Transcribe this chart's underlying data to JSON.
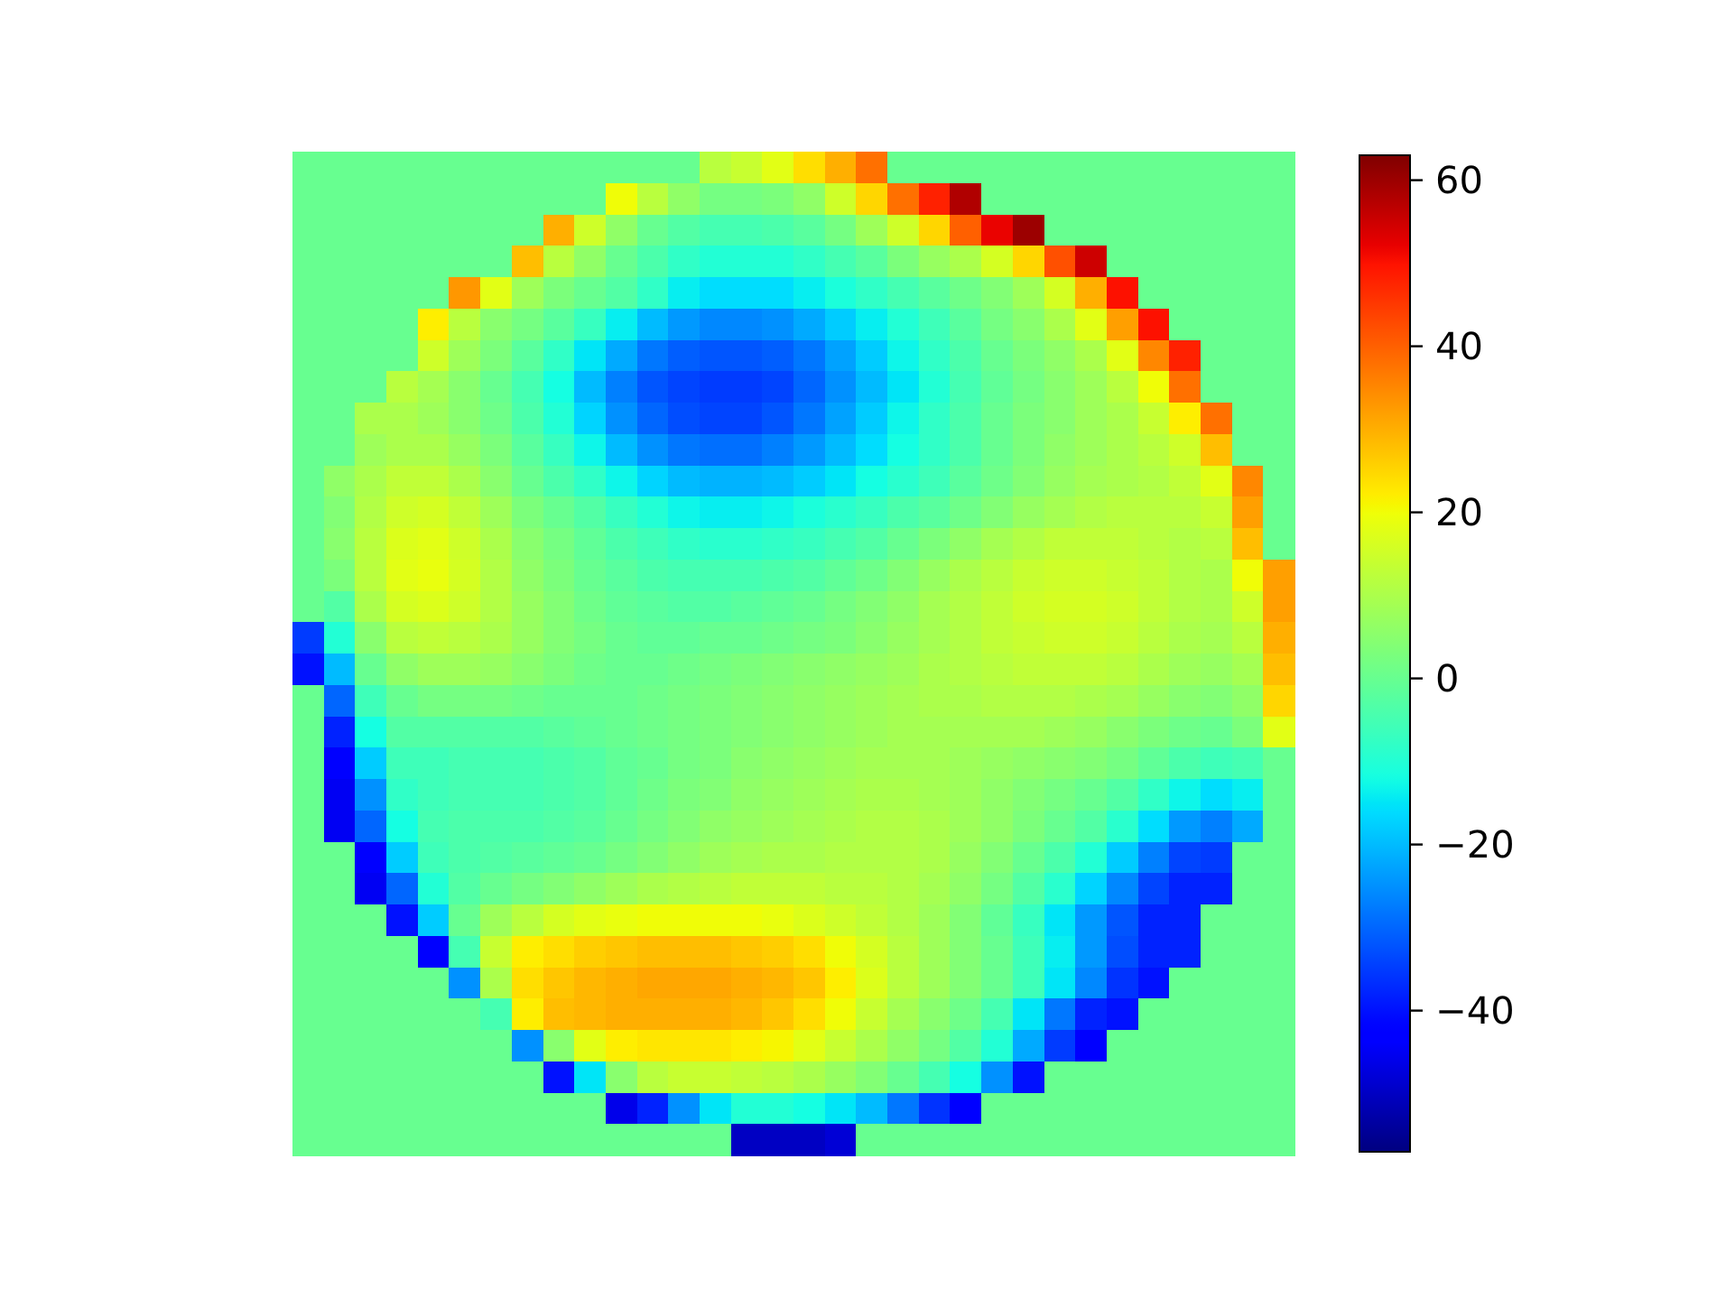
{
  "chart_data": {
    "type": "heatmap",
    "categories": [
      null,
      null,
      null,
      null,
      null,
      null,
      null,
      null,
      null,
      null,
      null,
      null,
      null,
      null,
      null,
      null,
      null,
      null,
      null,
      null,
      null,
      null,
      null,
      null,
      null,
      null,
      null,
      null,
      null,
      null,
      null,
      null
    ],
    "y_categories": [
      null,
      null,
      null,
      null,
      null,
      null,
      null,
      null,
      null,
      null,
      null,
      null,
      null,
      null,
      null,
      null,
      null,
      null,
      null,
      null,
      null,
      null,
      null,
      null,
      null,
      null,
      null,
      null,
      null,
      null,
      null,
      null
    ],
    "cells": [
      [
        0,
        0,
        0,
        0,
        0,
        0,
        0,
        0,
        0,
        0,
        0,
        0,
        0,
        12,
        14,
        18,
        24,
        30,
        38,
        0,
        0,
        0,
        0,
        0,
        0,
        0,
        0,
        0,
        0,
        0,
        0,
        0
      ],
      [
        0,
        0,
        0,
        0,
        0,
        0,
        0,
        0,
        0,
        0,
        20,
        12,
        6,
        2,
        2,
        3,
        6,
        15,
        25,
        38,
        48,
        58,
        0,
        0,
        0,
        0,
        0,
        0,
        0,
        0,
        0,
        0
      ],
      [
        0,
        0,
        0,
        0,
        0,
        0,
        0,
        0,
        30,
        15,
        6,
        0,
        -3,
        -5,
        -5,
        -4,
        -2,
        2,
        8,
        15,
        25,
        40,
        52,
        60,
        0,
        0,
        0,
        0,
        0,
        0,
        0,
        0
      ],
      [
        0,
        0,
        0,
        0,
        0,
        0,
        0,
        28,
        12,
        6,
        0,
        -4,
        -8,
        -10,
        -10,
        -10,
        -8,
        -5,
        -2,
        3,
        7,
        10,
        16,
        25,
        42,
        55,
        0,
        0,
        0,
        0,
        0,
        0
      ],
      [
        0,
        0,
        0,
        0,
        0,
        33,
        18,
        8,
        3,
        0,
        -3,
        -8,
        -14,
        -16,
        -16,
        -16,
        -14,
        -11,
        -8,
        -5,
        -2,
        1,
        4,
        8,
        16,
        30,
        50,
        0,
        0,
        0,
        0,
        0
      ],
      [
        0,
        0,
        0,
        0,
        22,
        12,
        5,
        2,
        -2,
        -7,
        -14,
        -20,
        -24,
        -26,
        -26,
        -25,
        -22,
        -18,
        -14,
        -10,
        -6,
        -2,
        2,
        5,
        10,
        18,
        32,
        50,
        0,
        0,
        0,
        0
      ],
      [
        0,
        0,
        0,
        0,
        15,
        8,
        3,
        -2,
        -8,
        -15,
        -22,
        -28,
        -31,
        -32,
        -32,
        -31,
        -28,
        -23,
        -18,
        -13,
        -8,
        -4,
        0,
        3,
        6,
        10,
        18,
        35,
        48,
        0,
        0,
        0
      ],
      [
        0,
        0,
        0,
        12,
        9,
        5,
        0,
        -5,
        -12,
        -20,
        -27,
        -32,
        -34,
        -35,
        -35,
        -34,
        -30,
        -25,
        -20,
        -15,
        -10,
        -5,
        -1,
        2,
        5,
        8,
        12,
        20,
        38,
        0,
        0,
        0
      ],
      [
        0,
        0,
        10,
        10,
        8,
        5,
        1,
        -4,
        -10,
        -17,
        -25,
        -30,
        -33,
        -34,
        -34,
        -32,
        -28,
        -23,
        -18,
        -13,
        -8,
        -4,
        0,
        3,
        5,
        8,
        10,
        14,
        22,
        38,
        0,
        0
      ],
      [
        0,
        0,
        8,
        10,
        10,
        7,
        3,
        -2,
        -7,
        -13,
        -20,
        -25,
        -28,
        -29,
        -29,
        -27,
        -24,
        -20,
        -16,
        -12,
        -8,
        -4,
        0,
        3,
        6,
        8,
        10,
        12,
        15,
        28,
        0,
        0
      ],
      [
        0,
        6,
        10,
        13,
        13,
        10,
        5,
        0,
        -4,
        -8,
        -13,
        -17,
        -20,
        -21,
        -21,
        -20,
        -18,
        -15,
        -12,
        -9,
        -6,
        -2,
        1,
        4,
        7,
        9,
        10,
        11,
        13,
        18,
        35,
        0
      ],
      [
        0,
        4,
        11,
        15,
        16,
        13,
        8,
        3,
        0,
        -3,
        -7,
        -10,
        -13,
        -14,
        -14,
        -13,
        -11,
        -9,
        -7,
        -4,
        -2,
        1,
        4,
        7,
        9,
        11,
        12,
        12,
        12,
        14,
        32,
        0
      ],
      [
        0,
        5,
        12,
        17,
        18,
        15,
        10,
        5,
        2,
        -1,
        -4,
        -6,
        -8,
        -9,
        -9,
        -8,
        -7,
        -5,
        -3,
        0,
        3,
        6,
        9,
        11,
        13,
        13,
        13,
        12,
        11,
        12,
        28,
        0
      ],
      [
        0,
        3,
        12,
        18,
        19,
        16,
        11,
        6,
        3,
        0,
        -2,
        -4,
        -5,
        -5,
        -5,
        -4,
        -3,
        -1,
        1,
        4,
        7,
        10,
        12,
        14,
        15,
        15,
        14,
        13,
        11,
        10,
        20,
        32
      ],
      [
        0,
        -3,
        10,
        16,
        17,
        15,
        11,
        7,
        4,
        1,
        -1,
        -2,
        -3,
        -3,
        -2,
        -1,
        0,
        2,
        4,
        6,
        9,
        11,
        13,
        15,
        16,
        16,
        15,
        13,
        11,
        10,
        15,
        32
      ],
      [
        -35,
        -10,
        5,
        12,
        13,
        12,
        10,
        7,
        4,
        2,
        0,
        -1,
        -1,
        0,
        0,
        1,
        2,
        3,
        5,
        7,
        9,
        11,
        13,
        14,
        15,
        15,
        14,
        12,
        10,
        9,
        12,
        30
      ],
      [
        -40,
        -20,
        0,
        6,
        8,
        8,
        7,
        5,
        3,
        1,
        0,
        0,
        1,
        2,
        3,
        4,
        5,
        6,
        7,
        8,
        10,
        11,
        12,
        13,
        13,
        13,
        12,
        10,
        8,
        7,
        9,
        28
      ],
      [
        0,
        -30,
        -6,
        0,
        2,
        2,
        2,
        1,
        0,
        0,
        0,
        1,
        2,
        3,
        4,
        5,
        6,
        7,
        8,
        9,
        10,
        10,
        11,
        11,
        11,
        10,
        9,
        7,
        5,
        4,
        6,
        25
      ],
      [
        0,
        -38,
        -12,
        -3,
        -3,
        -3,
        -3,
        -3,
        -2,
        -1,
        0,
        1,
        2,
        3,
        4,
        5,
        6,
        7,
        8,
        9,
        9,
        9,
        9,
        9,
        8,
        7,
        5,
        3,
        1,
        0,
        3,
        18
      ],
      [
        0,
        -42,
        -18,
        -6,
        -6,
        -5,
        -5,
        -5,
        -4,
        -3,
        -1,
        0,
        2,
        3,
        5,
        6,
        7,
        8,
        9,
        9,
        9,
        8,
        7,
        6,
        5,
        4,
        2,
        -1,
        -4,
        -6,
        -5,
        0
      ],
      [
        0,
        -45,
        -25,
        -8,
        -6,
        -5,
        -5,
        -5,
        -4,
        -3,
        -1,
        1,
        3,
        4,
        6,
        7,
        8,
        9,
        10,
        10,
        9,
        8,
        6,
        4,
        2,
        0,
        -3,
        -8,
        -13,
        -16,
        -14,
        0
      ],
      [
        0,
        -45,
        -30,
        -12,
        -5,
        -4,
        -4,
        -4,
        -3,
        -2,
        0,
        2,
        4,
        6,
        7,
        8,
        9,
        10,
        11,
        11,
        10,
        8,
        6,
        3,
        0,
        -3,
        -9,
        -16,
        -24,
        -27,
        -22,
        0
      ],
      [
        0,
        0,
        -42,
        -18,
        -6,
        -4,
        -3,
        -2,
        -1,
        0,
        2,
        4,
        6,
        8,
        9,
        10,
        10,
        11,
        11,
        11,
        10,
        7,
        4,
        0,
        -4,
        -10,
        -18,
        -27,
        -34,
        -35,
        0,
        0
      ],
      [
        0,
        0,
        -45,
        -30,
        -10,
        -3,
        0,
        2,
        4,
        6,
        8,
        10,
        11,
        12,
        13,
        13,
        13,
        12,
        12,
        11,
        9,
        6,
        2,
        -3,
        -9,
        -17,
        -26,
        -34,
        -38,
        -38,
        0,
        0
      ],
      [
        0,
        0,
        0,
        -40,
        -18,
        0,
        8,
        12,
        16,
        18,
        19,
        20,
        20,
        20,
        20,
        19,
        17,
        15,
        13,
        11,
        8,
        4,
        -1,
        -7,
        -15,
        -24,
        -32,
        -38,
        -38,
        0,
        0,
        0
      ],
      [
        0,
        0,
        0,
        0,
        -42,
        -5,
        14,
        22,
        24,
        26,
        27,
        28,
        28,
        28,
        27,
        26,
        24,
        20,
        16,
        12,
        8,
        4,
        0,
        -6,
        -14,
        -24,
        -33,
        -38,
        -38,
        0,
        0,
        0
      ],
      [
        0,
        0,
        0,
        0,
        0,
        -25,
        10,
        24,
        27,
        29,
        30,
        31,
        31,
        31,
        30,
        29,
        27,
        22,
        17,
        12,
        8,
        4,
        0,
        -6,
        -15,
        -26,
        -36,
        -40,
        0,
        0,
        0,
        0
      ],
      [
        0,
        0,
        0,
        0,
        0,
        0,
        -5,
        22,
        28,
        29,
        30,
        30,
        30,
        30,
        29,
        27,
        24,
        20,
        14,
        9,
        5,
        1,
        -5,
        -15,
        -28,
        -38,
        -40,
        0,
        0,
        0,
        0,
        0
      ],
      [
        0,
        0,
        0,
        0,
        0,
        0,
        0,
        -25,
        5,
        18,
        22,
        23,
        23,
        23,
        22,
        21,
        18,
        14,
        10,
        6,
        2,
        -3,
        -10,
        -22,
        -35,
        -42,
        0,
        0,
        0,
        0,
        0,
        0
      ],
      [
        0,
        0,
        0,
        0,
        0,
        0,
        0,
        0,
        -40,
        -15,
        5,
        12,
        14,
        14,
        13,
        12,
        10,
        7,
        4,
        0,
        -5,
        -12,
        -25,
        -40,
        0,
        0,
        0,
        0,
        0,
        0,
        0,
        0
      ],
      [
        0,
        0,
        0,
        0,
        0,
        0,
        0,
        0,
        0,
        0,
        -46,
        -38,
        -25,
        -15,
        -10,
        -10,
        -12,
        -15,
        -20,
        -28,
        -36,
        -42,
        0,
        0,
        0,
        0,
        0,
        0,
        0,
        0,
        0,
        0
      ],
      [
        0,
        0,
        0,
        0,
        0,
        0,
        0,
        0,
        0,
        0,
        0,
        0,
        0,
        0,
        -50,
        -50,
        -50,
        -48,
        0,
        0,
        0,
        0,
        0,
        0,
        0,
        0,
        0,
        0,
        0,
        0,
        0,
        0
      ]
    ],
    "clim": [
      -57,
      63
    ],
    "cticks": [
      {
        "value": -40,
        "label": "−40"
      },
      {
        "value": -20,
        "label": "−20"
      },
      0,
      20,
      40,
      60
    ]
  }
}
